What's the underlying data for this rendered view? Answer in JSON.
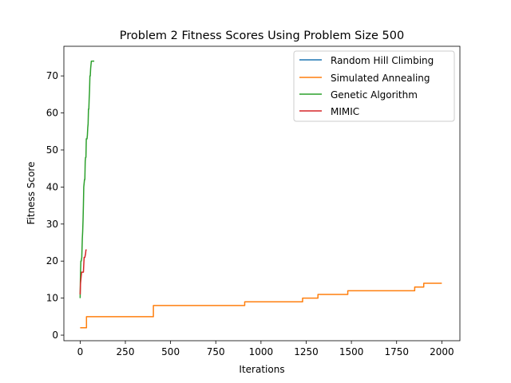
{
  "chart_data": {
    "type": "line",
    "title": "Problem 2 Fitness Scores Using Problem Size 500",
    "xlabel": "Iterations",
    "ylabel": "Fitness Score",
    "xlim": [
      -90,
      2100
    ],
    "ylim": [
      -1.5,
      78
    ],
    "xticks": [
      0,
      250,
      500,
      750,
      1000,
      1250,
      1500,
      1750,
      2000
    ],
    "yticks": [
      0,
      10,
      20,
      30,
      40,
      50,
      60,
      70
    ],
    "grid": false,
    "legend_position": "top-right",
    "series": [
      {
        "name": "Random Hill Climbing",
        "color": "#1f77b4",
        "x": [],
        "y": []
      },
      {
        "name": "Simulated Annealing",
        "color": "#ff7f0e",
        "x": [
          0,
          35,
          35,
          405,
          405,
          910,
          910,
          1230,
          1230,
          1315,
          1315,
          1480,
          1480,
          1850,
          1850,
          1900,
          1900,
          2000
        ],
        "y": [
          2,
          2,
          5,
          5,
          8,
          8,
          9,
          9,
          10,
          10,
          11,
          11,
          12,
          12,
          13,
          13,
          14,
          14
        ]
      },
      {
        "name": "Genetic Algorithm",
        "color": "#2ca02c",
        "x": [
          0,
          1,
          2,
          4,
          6,
          9,
          12,
          14,
          16,
          18,
          20,
          22,
          24,
          26,
          28,
          30,
          32,
          34,
          36,
          38,
          40,
          42,
          44,
          46,
          48,
          50,
          52,
          54,
          56,
          58,
          60,
          62,
          64,
          66,
          68,
          70,
          72,
          74,
          76,
          78
        ],
        "y": [
          10,
          14,
          17,
          20,
          20,
          21,
          26,
          28,
          31,
          35,
          40,
          41,
          42,
          42,
          47,
          48,
          48,
          53,
          53,
          53,
          54,
          56,
          57,
          61,
          61,
          64,
          66,
          70,
          70,
          72,
          73,
          74,
          74,
          74,
          74,
          74,
          74,
          74,
          74,
          74
        ]
      },
      {
        "name": "MIMIC",
        "color": "#d62728",
        "x": [
          0,
          2,
          4,
          6,
          8,
          10,
          14,
          18,
          22,
          26,
          30,
          32,
          34,
          36
        ],
        "y": [
          11,
          14,
          15,
          16,
          17,
          17,
          17,
          17,
          21,
          21,
          22,
          23,
          23,
          23
        ]
      }
    ]
  }
}
